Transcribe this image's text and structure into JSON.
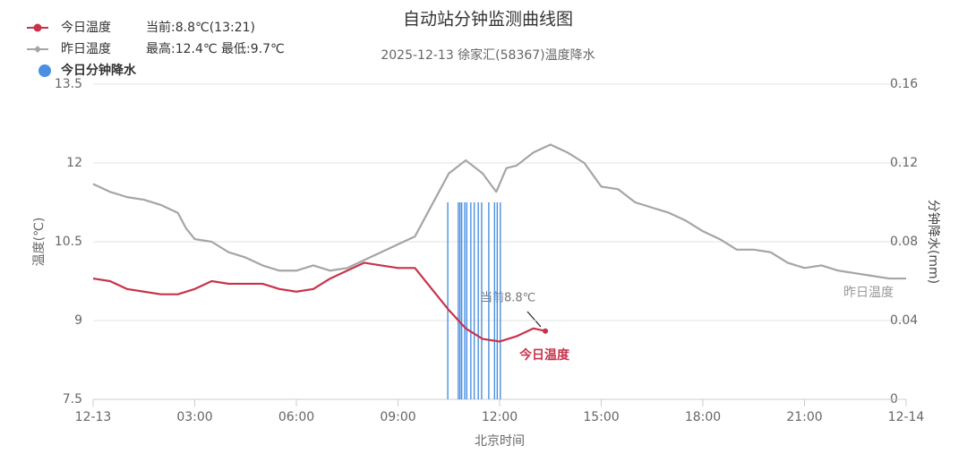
{
  "chart_data": {
    "type": "line",
    "title": "自动站分钟监测曲线图",
    "subtitle": "2025-12-13 徐家汇(58367)温度降水",
    "x_label": "北京时间",
    "y_label": "温度(℃)",
    "y2_label": "分钟降水(mm)",
    "legend_notes": [
      "当前:8.8℃(13:21)",
      "最高:12.4℃ 最低:9.7℃"
    ],
    "annotations": [
      "当前8.8℃",
      "今日温度",
      "昨日温度"
    ],
    "xlim": [
      0,
      24
    ],
    "xticks": [
      {
        "value": 0,
        "label": "12-13"
      },
      {
        "value": 3,
        "label": "03:00"
      },
      {
        "value": 6,
        "label": "06:00"
      },
      {
        "value": 9,
        "label": "09:00"
      },
      {
        "value": 12,
        "label": "12:00"
      },
      {
        "value": 15,
        "label": "15:00"
      },
      {
        "value": 18,
        "label": "18:00"
      },
      {
        "value": 21,
        "label": "21:00"
      },
      {
        "value": 24,
        "label": "12-14"
      }
    ],
    "ylim": [
      7.5,
      13.5
    ],
    "yticks": [
      7.5,
      9,
      10.5,
      12,
      13.5
    ],
    "y2lim": [
      0,
      0.16
    ],
    "y2ticks": [
      0,
      0.04,
      0.08,
      0.12,
      0.16
    ],
    "grid": true,
    "series": [
      {
        "name": "今日温度",
        "color": "#c8334a",
        "x": [
          0,
          0.5,
          1,
          1.5,
          2,
          2.5,
          3,
          3.5,
          4,
          4.5,
          5,
          5.5,
          6,
          6.5,
          7,
          7.5,
          8,
          8.5,
          9,
          9.5,
          10,
          10.5,
          11,
          11.5,
          12,
          12.5,
          13,
          13.35
        ],
        "values": [
          9.8,
          9.75,
          9.6,
          9.55,
          9.5,
          9.5,
          9.6,
          9.75,
          9.7,
          9.7,
          9.7,
          9.6,
          9.55,
          9.6,
          9.8,
          9.95,
          10.1,
          10.05,
          10.0,
          10.0,
          9.6,
          9.2,
          8.85,
          8.65,
          8.6,
          8.7,
          8.85,
          8.8
        ]
      },
      {
        "name": "昨日温度",
        "color": "#a5a5a5",
        "x": [
          0,
          0.5,
          1,
          1.5,
          2,
          2.5,
          2.75,
          3,
          3.5,
          4,
          4.5,
          5,
          5.5,
          6,
          6.5,
          7,
          7.5,
          8,
          8.5,
          9,
          9.5,
          10,
          10.5,
          11,
          11.5,
          11.9,
          12.2,
          12.5,
          13,
          13.5,
          14,
          14.5,
          15,
          15.5,
          16,
          16.5,
          17,
          17.5,
          18,
          18.5,
          19,
          19.5,
          20,
          20.5,
          21,
          21.5,
          22,
          22.5,
          23,
          23.5,
          24
        ],
        "values": [
          11.6,
          11.45,
          11.35,
          11.3,
          11.2,
          11.05,
          10.75,
          10.55,
          10.5,
          10.3,
          10.2,
          10.05,
          9.95,
          9.95,
          10.05,
          9.95,
          10.0,
          10.15,
          10.3,
          10.45,
          10.6,
          11.2,
          11.8,
          12.05,
          11.8,
          11.45,
          11.9,
          11.95,
          12.2,
          12.35,
          12.2,
          12.0,
          11.55,
          11.5,
          11.25,
          11.15,
          11.05,
          10.9,
          10.7,
          10.55,
          10.35,
          10.35,
          10.3,
          10.1,
          10.0,
          10.05,
          9.95,
          9.9,
          9.85,
          9.8,
          9.8
        ]
      },
      {
        "name": "今日分钟降水",
        "color": "#4a90e2",
        "type": "bar",
        "axis": "y2",
        "x": [
          10.47,
          10.78,
          10.83,
          10.88,
          10.97,
          11.03,
          11.15,
          11.25,
          11.37,
          11.47,
          11.68,
          11.85,
          11.93,
          12.02
        ],
        "values": [
          0.1,
          0.1,
          0.1,
          0.1,
          0.1,
          0.1,
          0.1,
          0.1,
          0.1,
          0.1,
          0.1,
          0.1,
          0.1,
          0.1
        ]
      }
    ]
  }
}
